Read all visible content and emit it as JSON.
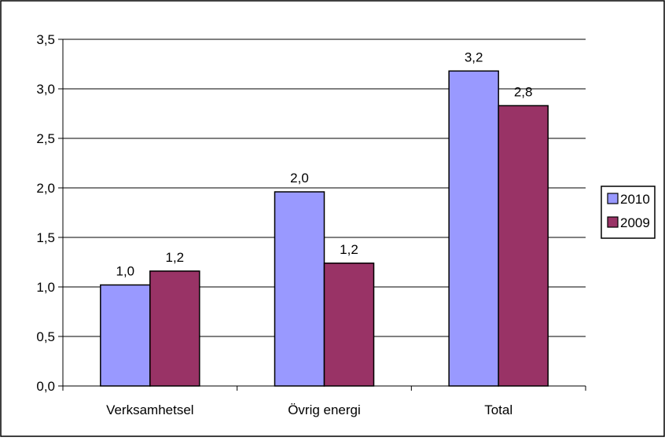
{
  "chart_data": {
    "type": "bar",
    "categories": [
      "Verksamhetsel",
      "Övrig energi",
      "Total"
    ],
    "series": [
      {
        "name": "2010",
        "color": "#9999FF",
        "values": [
          1.02,
          1.96,
          3.18
        ],
        "labels": [
          "1,0",
          "2,0",
          "3,2"
        ]
      },
      {
        "name": "2009",
        "color": "#993366",
        "values": [
          1.16,
          1.24,
          2.83
        ],
        "labels": [
          "1,2",
          "1,2",
          "2,8"
        ]
      }
    ],
    "ylim": [
      0,
      3.5
    ],
    "yticks": [
      0,
      0.5,
      1.0,
      1.5,
      2.0,
      2.5,
      3.0,
      3.5
    ],
    "ytick_labels": [
      "0,0",
      "0,5",
      "1,0",
      "1,5",
      "2,0",
      "2,5",
      "3,0",
      "3,5"
    ],
    "grid": true,
    "legend_position": "right",
    "title": "",
    "xlabel": "",
    "ylabel": ""
  }
}
